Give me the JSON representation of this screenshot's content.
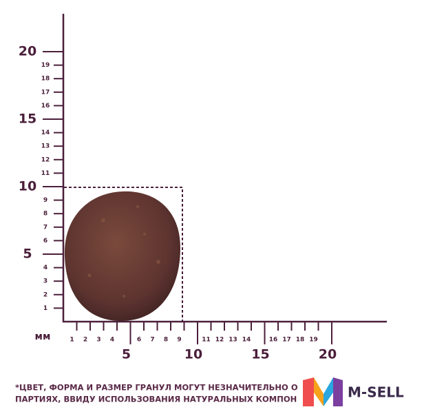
{
  "ruler": {
    "unit": "мм",
    "y_major": [
      "5",
      "10",
      "15",
      "20"
    ],
    "y_minor": [
      "1",
      "2",
      "3",
      "4",
      "6",
      "7",
      "8",
      "9",
      "11",
      "12",
      "13",
      "14",
      "16",
      "17",
      "18",
      "19"
    ],
    "x_major": [
      "5",
      "10",
      "15",
      "20"
    ],
    "x_minor": [
      "1",
      "2",
      "3",
      "4",
      "6",
      "7",
      "8",
      "9",
      "11",
      "12",
      "13",
      "14",
      "16",
      "17",
      "18",
      "19"
    ]
  },
  "footnote": [
    "*ЦВЕТ, ФОРМА И РАЗМЕР ГРАНУЛ МОГУТ НЕЗНАЧИТЕЛЬНО О",
    "ПАРТИЯХ, ВВИДУ ИСПОЛЬЗОВАНИЯ НАТУРАЛЬНЫХ КОМПОН"
  ],
  "logo": {
    "text": "M-SELL"
  }
}
